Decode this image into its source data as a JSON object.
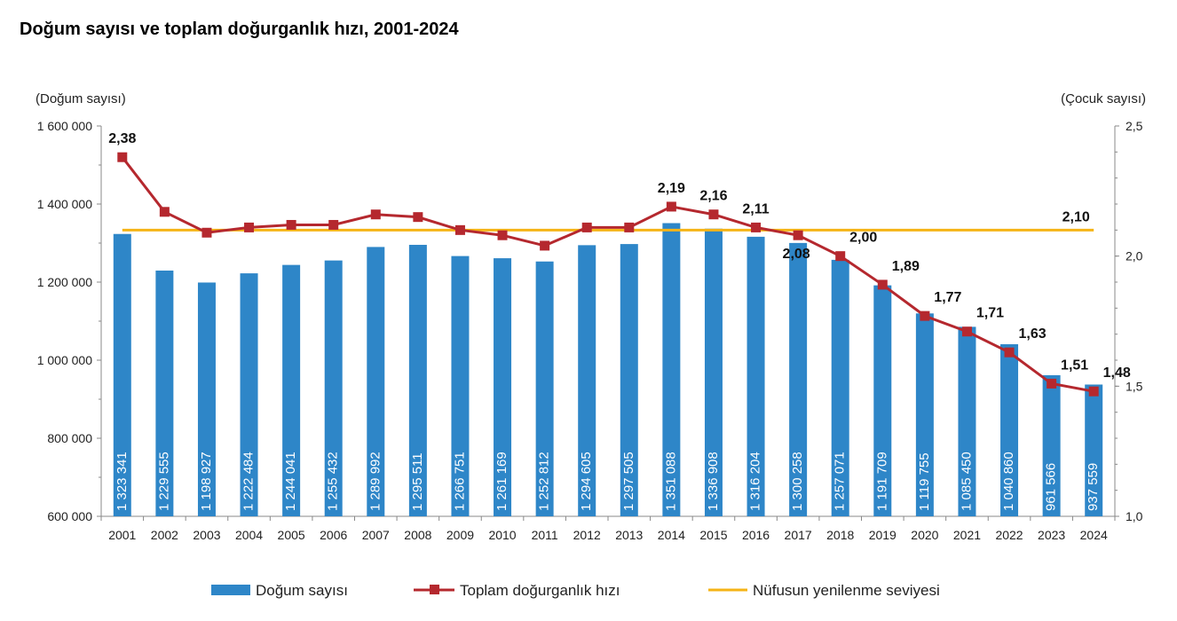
{
  "chart_data": {
    "type": "bar",
    "title": "Doğum sayısı ve toplam doğurganlık hızı, 2001-2024",
    "ylabel_left": "(Doğum sayısı)",
    "ylabel_right": "(Çocuk sayısı)",
    "ylim_left": [
      600000,
      1600000
    ],
    "ylim_right": [
      1.0,
      2.5
    ],
    "y_ticks_left": [
      "600 000",
      "800 000",
      "1 000 000",
      "1 200 000",
      "1 400 000",
      "1 600 000"
    ],
    "y_ticks_right": [
      "1,0",
      "1,5",
      "2,0",
      "2,5"
    ],
    "categories": [
      "2001",
      "2002",
      "2003",
      "2004",
      "2005",
      "2006",
      "2007",
      "2008",
      "2009",
      "2010",
      "2011",
      "2012",
      "2013",
      "2014",
      "2015",
      "2016",
      "2017",
      "2018",
      "2019",
      "2020",
      "2021",
      "2022",
      "2023",
      "2024"
    ],
    "series": [
      {
        "name": "Doğum sayısı",
        "type": "bar",
        "axis": "left",
        "color": "#2E86C8",
        "values": [
          1323341,
          1229555,
          1198927,
          1222484,
          1244041,
          1255432,
          1289992,
          1295511,
          1266751,
          1261169,
          1252812,
          1294605,
          1297505,
          1351088,
          1336908,
          1316204,
          1300258,
          1257071,
          1191709,
          1119755,
          1085450,
          1040860,
          961566,
          937559
        ],
        "value_labels": [
          "1 323 341",
          "1 229 555",
          "1 198 927",
          "1 222 484",
          "1 244 041",
          "1 255 432",
          "1 289 992",
          "1 295 511",
          "1 266 751",
          "1 261 169",
          "1 252 812",
          "1 294 605",
          "1 297 505",
          "1 351 088",
          "1 336 908",
          "1 316 204",
          "1 300 258",
          "1 257 071",
          "1 191 709",
          "1 119 755",
          "1 085 450",
          "1 040 860",
          "961 566",
          "937 559"
        ]
      },
      {
        "name": "Toplam doğurganlık hızı",
        "type": "line",
        "axis": "right",
        "color": "#B5282E",
        "values": [
          2.38,
          2.17,
          2.09,
          2.11,
          2.12,
          2.12,
          2.16,
          2.15,
          2.1,
          2.08,
          2.04,
          2.11,
          2.11,
          2.19,
          2.16,
          2.11,
          2.08,
          2.0,
          1.89,
          1.77,
          1.71,
          1.63,
          1.51,
          1.48
        ],
        "labels": [
          {
            "index": 0,
            "text": "2,38"
          },
          {
            "index": 13,
            "text": "2,19"
          },
          {
            "index": 14,
            "text": "2,16"
          },
          {
            "index": 15,
            "text": "2,11"
          },
          {
            "index": 16,
            "text": "2,08"
          },
          {
            "index": 17,
            "text": "2,00"
          },
          {
            "index": 18,
            "text": "1,89"
          },
          {
            "index": 19,
            "text": "1,77"
          },
          {
            "index": 20,
            "text": "1,71"
          },
          {
            "index": 21,
            "text": "1,63"
          },
          {
            "index": 22,
            "text": "1,51"
          },
          {
            "index": 23,
            "text": "1,48"
          }
        ]
      },
      {
        "name": "Nüfusun yenilenme seviyesi",
        "type": "line",
        "axis": "right",
        "color": "#F5B417",
        "value": 2.1,
        "label": "2,10"
      }
    ],
    "legend_position": "bottom",
    "grid": false
  }
}
